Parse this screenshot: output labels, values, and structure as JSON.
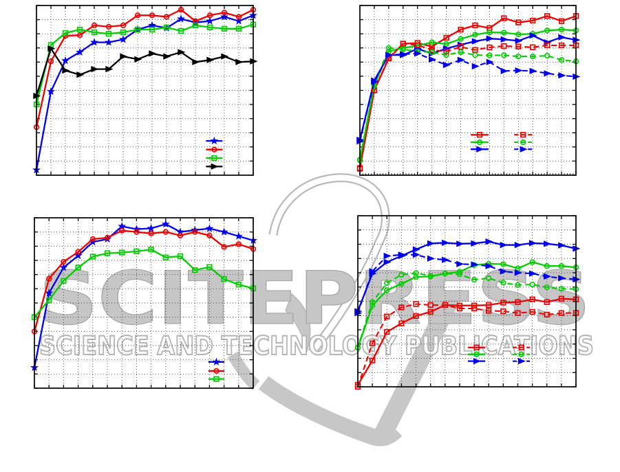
{
  "watermark": {
    "title": "SCITEPRESS",
    "subtitle": "SCIENCE AND TECHNOLOGY PUBLICATIONS",
    "logo_color": "#c7c7c7",
    "outline_color": "#b9b9b9"
  },
  "palette": {
    "blue": "#0000ee",
    "red": "#ee0000",
    "green": "#00cc00",
    "black": "#000000",
    "grid": "#404040",
    "axis": "#000000"
  },
  "chart_data": [
    {
      "id": "top-left",
      "type": "line",
      "title": "",
      "xlabel": "",
      "ylabel": "",
      "axis_tick_labels_visible": false,
      "x": [
        1,
        2,
        3,
        4,
        5,
        6,
        7,
        8,
        9,
        10,
        11,
        12,
        13,
        14,
        15,
        16
      ],
      "x_grid_divisions": 15,
      "y_grid_divisions": 12,
      "ylim": [
        0,
        1
      ],
      "grid": "dotted",
      "series": [
        {
          "name": "blue-star",
          "color": "blue",
          "marker": "star",
          "line": "solid",
          "values": [
            0.031,
            0.493,
            0.675,
            0.725,
            0.783,
            0.783,
            0.8,
            0.858,
            0.883,
            0.867,
            0.921,
            0.9,
            0.908,
            0.933,
            0.908,
            0.942
          ]
        },
        {
          "name": "red-circle",
          "color": "red",
          "marker": "circle",
          "line": "solid",
          "values": [
            0.283,
            0.671,
            0.821,
            0.825,
            0.883,
            0.875,
            0.883,
            0.942,
            0.942,
            0.933,
            0.975,
            0.908,
            0.942,
            0.958,
            0.933,
            0.975
          ]
        },
        {
          "name": "green-square",
          "color": "green",
          "marker": "square",
          "line": "solid",
          "values": [
            0.417,
            0.767,
            0.838,
            0.858,
            0.842,
            0.833,
            0.842,
            0.858,
            0.858,
            0.871,
            0.85,
            0.883,
            0.871,
            0.863,
            0.863,
            0.888
          ]
        },
        {
          "name": "black-triangle",
          "color": "black",
          "marker": "triangle-right",
          "line": "solid",
          "values": [
            0.467,
            0.746,
            0.617,
            0.592,
            0.625,
            0.625,
            0.7,
            0.683,
            0.717,
            0.7,
            0.725,
            0.667,
            0.679,
            0.7,
            0.667,
            0.671
          ]
        }
      ],
      "legend": {
        "frame": false,
        "position": "inside-bottom-right",
        "rows_fy": [
          0.798,
          0.849,
          0.899,
          0.949
        ],
        "columns": [
          {
            "line_span": [
              0.782,
              0.858
            ],
            "entries": [
              "blue-star",
              "red-circle",
              "green-square",
              "black-triangle"
            ]
          }
        ]
      }
    },
    {
      "id": "top-right",
      "type": "line",
      "title": "",
      "xlabel": "",
      "ylabel": "",
      "axis_tick_labels_visible": false,
      "x": [
        1,
        2,
        3,
        4,
        5,
        6,
        7,
        8,
        9,
        10,
        11,
        12,
        13,
        14,
        15,
        16
      ],
      "x_grid_divisions": 15,
      "y_grid_divisions": 12,
      "ylim": [
        0,
        1
      ],
      "grid": "dotted",
      "x_minor_ticks": true,
      "series": [
        {
          "name": "red-square-solid",
          "color": "red",
          "marker": "square",
          "line": "solid",
          "values": [
            0.042,
            0.5,
            0.688,
            0.775,
            0.779,
            0.758,
            0.81,
            0.858,
            0.883,
            0.867,
            0.925,
            0.9,
            0.911,
            0.938,
            0.908,
            0.938
          ]
        },
        {
          "name": "green-circle-solid",
          "color": "green",
          "marker": "circle",
          "line": "solid",
          "values": [
            0.092,
            0.529,
            0.729,
            0.75,
            0.763,
            0.783,
            0.773,
            0.803,
            0.828,
            0.842,
            0.84,
            0.83,
            0.833,
            0.853,
            0.858,
            0.853
          ]
        },
        {
          "name": "blue-triangle-solid",
          "color": "blue",
          "marker": "triangle-right",
          "line": "solid",
          "values": [
            0.208,
            0.558,
            0.708,
            0.708,
            0.745,
            0.717,
            0.746,
            0.769,
            0.789,
            0.805,
            0.8,
            0.792,
            0.823,
            0.783,
            0.813,
            0.797
          ]
        },
        {
          "name": "red-square-dashed",
          "color": "red",
          "marker": "square",
          "line": "dashed",
          "values": [
            0.038,
            0.5,
            0.692,
            0.775,
            0.767,
            0.738,
            0.729,
            0.756,
            0.738,
            0.753,
            0.761,
            0.758,
            0.754,
            0.765,
            0.765,
            0.765
          ]
        },
        {
          "name": "green-circle-dashed",
          "color": "green",
          "marker": "circle",
          "line": "dashed",
          "values": [
            0.088,
            0.525,
            0.75,
            0.742,
            0.729,
            0.725,
            0.708,
            0.725,
            0.708,
            0.706,
            0.707,
            0.7,
            0.7,
            0.704,
            0.679,
            0.671
          ]
        },
        {
          "name": "blue-triangle-dashed",
          "color": "blue",
          "marker": "triangle-right",
          "line": "dashed",
          "values": [
            0.2,
            0.55,
            0.708,
            0.713,
            0.717,
            0.682,
            0.65,
            0.679,
            0.642,
            0.667,
            0.614,
            0.617,
            0.614,
            0.6,
            0.588,
            0.581
          ]
        }
      ],
      "legend": {
        "frame": false,
        "position": "inside-bottom-center",
        "rows_fy": [
          0.762,
          0.806,
          0.847
        ],
        "columns": [
          {
            "line_span": [
              0.513,
              0.595
            ],
            "entries": [
              "red-square-solid",
              "green-circle-solid",
              "blue-triangle-solid"
            ]
          },
          {
            "line_span": [
              0.714,
              0.797
            ],
            "entries": [
              "red-square-dashed",
              "green-circle-dashed",
              "blue-triangle-dashed"
            ]
          }
        ]
      }
    },
    {
      "id": "bottom-left",
      "type": "line",
      "title": "",
      "xlabel": "",
      "ylabel": "",
      "axis_tick_labels_visible": false,
      "x": [
        1,
        2,
        3,
        4,
        5,
        6,
        7,
        8,
        9,
        10,
        11,
        12,
        13,
        14,
        15,
        16
      ],
      "x_grid_divisions": 15,
      "y_grid_divisions": 12,
      "ylim": [
        0,
        1
      ],
      "grid": "dotted",
      "series": [
        {
          "name": "blue-star",
          "color": "blue",
          "marker": "star",
          "line": "solid",
          "values": [
            0.121,
            0.558,
            0.708,
            0.778,
            0.858,
            0.875,
            0.95,
            0.933,
            0.938,
            0.963,
            0.917,
            0.928,
            0.937,
            0.917,
            0.892,
            0.867
          ]
        },
        {
          "name": "red-circle",
          "color": "red",
          "marker": "circle",
          "line": "solid",
          "values": [
            0.333,
            0.642,
            0.742,
            0.8,
            0.875,
            0.883,
            0.925,
            0.917,
            0.908,
            0.917,
            0.896,
            0.917,
            0.896,
            0.829,
            0.845,
            0.817
          ]
        },
        {
          "name": "green-square",
          "color": "green",
          "marker": "square",
          "line": "solid",
          "values": [
            0.417,
            0.517,
            0.63,
            0.708,
            0.772,
            0.792,
            0.796,
            0.803,
            0.814,
            0.767,
            0.775,
            0.693,
            0.711,
            0.64,
            0.608,
            0.586
          ]
        }
      ],
      "legend": {
        "frame": false,
        "position": "inside-bottom-right",
        "rows_fy": [
          0.846,
          0.899,
          0.946
        ],
        "columns": [
          {
            "line_span": [
              0.795,
              0.868
            ],
            "entries": [
              "blue-star",
              "red-circle",
              "green-square"
            ]
          }
        ]
      }
    },
    {
      "id": "bottom-right",
      "type": "line",
      "title": "",
      "xlabel": "",
      "ylabel": "",
      "axis_tick_labels_visible": false,
      "x": [
        1,
        2,
        3,
        4,
        5,
        6,
        7,
        8,
        9,
        10,
        11,
        12,
        13,
        14,
        15,
        16
      ],
      "x_grid_divisions": 15,
      "y_grid_divisions": 12,
      "ylim": [
        0,
        1
      ],
      "grid": "dotted",
      "series": [
        {
          "name": "red-square-solid",
          "color": "red",
          "marker": "square",
          "line": "solid",
          "values": [
            0.011,
            0.154,
            0.321,
            0.371,
            0.414,
            0.438,
            0.478,
            0.475,
            0.475,
            0.478,
            0.492,
            0.495,
            0.511,
            0.495,
            0.515,
            0.511
          ]
        },
        {
          "name": "red-square-dashed",
          "color": "red",
          "marker": "square",
          "line": "dashed",
          "values": [
            0.0,
            0.254,
            0.411,
            0.464,
            0.484,
            0.478,
            0.478,
            0.458,
            0.458,
            0.444,
            0.442,
            0.431,
            0.438,
            0.422,
            0.431,
            0.432
          ]
        },
        {
          "name": "green-circle-solid",
          "color": "green",
          "marker": "circle",
          "line": "solid",
          "values": [
            0.228,
            0.475,
            0.564,
            0.602,
            0.642,
            0.645,
            0.662,
            0.672,
            0.712,
            0.719,
            0.717,
            0.692,
            0.729,
            0.706,
            0.706,
            0.698
          ]
        },
        {
          "name": "green-circle-dashed",
          "color": "green",
          "marker": "circle",
          "line": "dashed",
          "values": [
            0.23,
            0.495,
            0.606,
            0.655,
            0.665,
            0.648,
            0.662,
            0.658,
            0.626,
            0.635,
            0.608,
            0.595,
            0.598,
            0.582,
            0.573,
            0.571
          ]
        },
        {
          "name": "blue-triangle-solid",
          "color": "blue",
          "marker": "triangle-right",
          "line": "solid",
          "values": [
            0.442,
            0.662,
            0.729,
            0.765,
            0.803,
            0.838,
            0.842,
            0.836,
            0.838,
            0.849,
            0.829,
            0.829,
            0.84,
            0.836,
            0.827,
            0.808
          ]
        },
        {
          "name": "blue-triangle-dashed",
          "color": "blue",
          "marker": "triangle-right",
          "line": "dashed",
          "values": [
            0.431,
            0.675,
            0.765,
            0.772,
            0.772,
            0.75,
            0.742,
            0.718,
            0.715,
            0.706,
            0.675,
            0.667,
            0.662,
            0.645,
            0.635,
            0.628
          ]
        }
      ],
      "legend": {
        "frame": false,
        "position": "inside-bottom-center",
        "rows_fy": [
          0.77,
          0.81,
          0.85
        ],
        "columns": [
          {
            "line_span": [
              0.505,
              0.584
            ],
            "entries": [
              "red-square-solid",
              "green-circle-solid",
              "blue-triangle-solid"
            ]
          },
          {
            "line_span": [
              0.71,
              0.789
            ],
            "entries": [
              "red-square-dashed",
              "green-circle-dashed",
              "blue-triangle-dashed"
            ]
          }
        ]
      }
    }
  ]
}
